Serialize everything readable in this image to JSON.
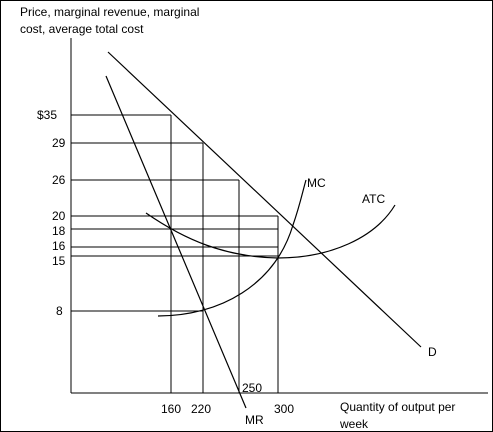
{
  "y_axis_title": [
    "Price, marginal revenue, marginal",
    "cost, average total cost"
  ],
  "x_axis_title": [
    "Quantity of output per",
    "week"
  ],
  "y_ticks": [
    "$35",
    "29",
    "26",
    "20",
    "18",
    "16",
    "15",
    "8"
  ],
  "x_ticks": [
    "160",
    "220",
    "250",
    "300"
  ],
  "curve_labels": {
    "mc": "MC",
    "atc": "ATC",
    "mr": "MR",
    "demand": "D"
  },
  "colors": {
    "ink": "#000000",
    "background": "#ffffff"
  }
}
